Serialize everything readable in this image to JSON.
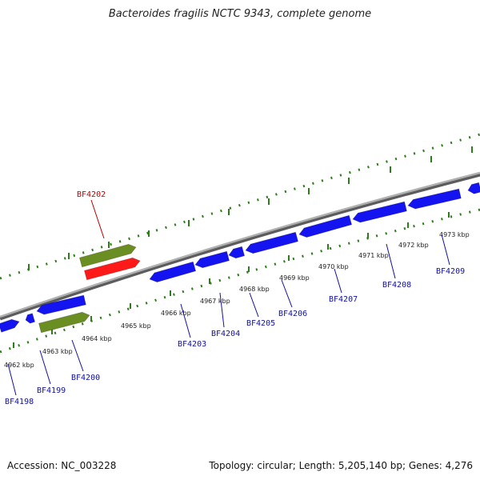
{
  "title": "Bacteroides fragilis NCTC 9343, complete genome",
  "accession": "Accession: NC_003228",
  "topology": "Topology: circular; Length: 5,205,140 bp; Genes: 4,276",
  "colors": {
    "backbone": "#8a8a8a",
    "cds_blue": "#1414f0",
    "cds_red": "#ff1a1a",
    "cds_green": "#6b8e23",
    "tick_green": "#2e7d1b",
    "label_blue": "#1010a0",
    "label_red": "#c00000"
  },
  "ticks": [
    {
      "label": "4962 kbp"
    },
    {
      "label": "4963 kbp"
    },
    {
      "label": "4964 kbp"
    },
    {
      "label": "4965 kbp"
    },
    {
      "label": "4966 kbp"
    },
    {
      "label": "4967 kbp"
    },
    {
      "label": "4968 kbp"
    },
    {
      "label": "4969 kbp"
    },
    {
      "label": "4970 kbp"
    },
    {
      "label": "4971 kbp"
    },
    {
      "label": "4972 kbp"
    },
    {
      "label": "4973 kbp"
    }
  ],
  "genes": [
    {
      "name": "BF4198"
    },
    {
      "name": "BF4199"
    },
    {
      "name": "BF4200"
    },
    {
      "name": "BF4202"
    },
    {
      "name": "BF4203"
    },
    {
      "name": "BF4204"
    },
    {
      "name": "BF4205"
    },
    {
      "name": "BF4206"
    },
    {
      "name": "BF4207"
    },
    {
      "name": "BF4208"
    },
    {
      "name": "BF4209"
    }
  ]
}
